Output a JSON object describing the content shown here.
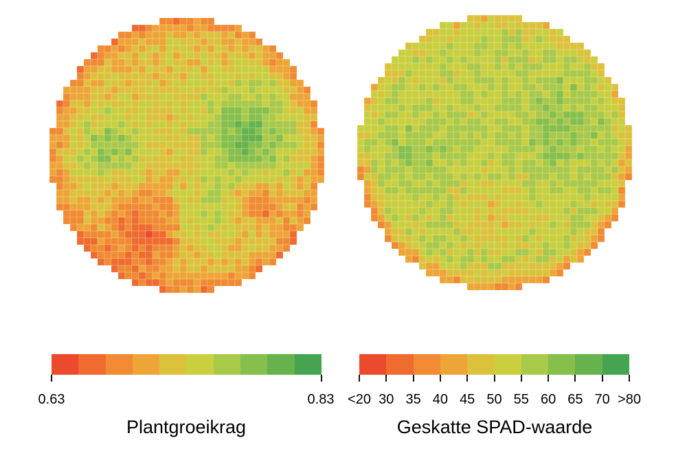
{
  "maps": [
    {
      "name": "plantgroeikrag-map",
      "value_range": [
        0.63,
        0.83
      ]
    },
    {
      "name": "spad-map",
      "value_range": [
        20,
        80
      ]
    }
  ],
  "colors": [
    "#ec4a2c",
    "#ef6b2f",
    "#f08a33",
    "#eea538",
    "#dcc23c",
    "#c9cf3f",
    "#a9c94a",
    "#86bf4c",
    "#66b24c",
    "#45a450"
  ],
  "legend_left": {
    "title": "Plantgroeikrag",
    "min_label": "0.63",
    "max_label": "0.83"
  },
  "legend_right": {
    "title": "Geskatte SPAD-waarde",
    "labels": [
      "<20",
      "30",
      "35",
      "40",
      "45",
      "50",
      "55",
      "60",
      "65",
      "70",
      ">80"
    ]
  }
}
